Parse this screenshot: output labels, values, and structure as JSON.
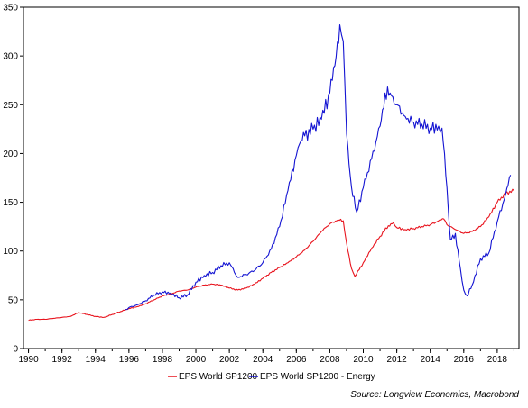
{
  "chart_data": {
    "type": "line",
    "title": "",
    "xlabel": "",
    "ylabel": "",
    "xlim": [
      1989.7,
      2019.3
    ],
    "ylim": [
      0,
      350
    ],
    "x_ticks": [
      1990,
      1992,
      1994,
      1996,
      1998,
      2000,
      2002,
      2004,
      2006,
      2008,
      2010,
      2012,
      2014,
      2016,
      2018
    ],
    "y_ticks": [
      0,
      50,
      100,
      150,
      200,
      250,
      300,
      350
    ],
    "grid": false,
    "legend_position": "bottom",
    "source": "Source: Longview Economics, Macrobond",
    "series": [
      {
        "name": "EPS World SP1200",
        "color": "#e8141e",
        "points": [
          [
            1990.0,
            29
          ],
          [
            1990.5,
            30
          ],
          [
            1991.0,
            30
          ],
          [
            1991.5,
            31
          ],
          [
            1992.0,
            32
          ],
          [
            1992.5,
            33
          ],
          [
            1993.0,
            37
          ],
          [
            1993.5,
            35
          ],
          [
            1994.0,
            33
          ],
          [
            1994.5,
            32
          ],
          [
            1995.0,
            35
          ],
          [
            1995.5,
            38
          ],
          [
            1996.0,
            41
          ],
          [
            1996.5,
            43
          ],
          [
            1997.0,
            46
          ],
          [
            1997.5,
            50
          ],
          [
            1998.0,
            54
          ],
          [
            1998.5,
            56
          ],
          [
            1999.0,
            59
          ],
          [
            1999.5,
            60
          ],
          [
            2000.0,
            63
          ],
          [
            2000.5,
            65
          ],
          [
            2001.0,
            66
          ],
          [
            2001.5,
            65
          ],
          [
            2002.0,
            62
          ],
          [
            2002.5,
            60
          ],
          [
            2003.0,
            62
          ],
          [
            2003.5,
            66
          ],
          [
            2004.0,
            72
          ],
          [
            2004.5,
            78
          ],
          [
            2005.0,
            83
          ],
          [
            2005.5,
            88
          ],
          [
            2006.0,
            94
          ],
          [
            2006.5,
            101
          ],
          [
            2007.0,
            110
          ],
          [
            2007.5,
            120
          ],
          [
            2008.0,
            128
          ],
          [
            2008.5,
            132
          ],
          [
            2008.8,
            131
          ],
          [
            2009.0,
            108
          ],
          [
            2009.3,
            82
          ],
          [
            2009.5,
            74
          ],
          [
            2010.0,
            88
          ],
          [
            2010.5,
            103
          ],
          [
            2011.0,
            115
          ],
          [
            2011.5,
            126
          ],
          [
            2011.8,
            129
          ],
          [
            2012.0,
            124
          ],
          [
            2012.5,
            122
          ],
          [
            2013.0,
            123
          ],
          [
            2013.5,
            125
          ],
          [
            2014.0,
            127
          ],
          [
            2014.5,
            131
          ],
          [
            2014.8,
            133
          ],
          [
            2015.0,
            127
          ],
          [
            2015.5,
            122
          ],
          [
            2016.0,
            118
          ],
          [
            2016.5,
            120
          ],
          [
            2017.0,
            125
          ],
          [
            2017.5,
            135
          ],
          [
            2018.0,
            150
          ],
          [
            2018.5,
            159
          ],
          [
            2019.0,
            162
          ]
        ]
      },
      {
        "name": "EPS World SP1200 - Energy",
        "color": "#1414d2",
        "points": [
          [
            1995.8,
            40
          ],
          [
            1996.0,
            42
          ],
          [
            1996.5,
            45
          ],
          [
            1997.0,
            49
          ],
          [
            1997.5,
            55
          ],
          [
            1998.0,
            58
          ],
          [
            1998.5,
            57
          ],
          [
            1999.0,
            52
          ],
          [
            1999.5,
            55
          ],
          [
            2000.0,
            68
          ],
          [
            2000.5,
            75
          ],
          [
            2001.0,
            78
          ],
          [
            2001.5,
            85
          ],
          [
            2002.0,
            88
          ],
          [
            2002.3,
            78
          ],
          [
            2002.5,
            73
          ],
          [
            2003.0,
            76
          ],
          [
            2003.5,
            80
          ],
          [
            2004.0,
            88
          ],
          [
            2004.5,
            102
          ],
          [
            2005.0,
            125
          ],
          [
            2005.5,
            162
          ],
          [
            2006.0,
            198
          ],
          [
            2006.2,
            210
          ],
          [
            2006.5,
            218
          ],
          [
            2007.0,
            225
          ],
          [
            2007.5,
            235
          ],
          [
            2008.0,
            262
          ],
          [
            2008.3,
            290
          ],
          [
            2008.6,
            332
          ],
          [
            2008.8,
            315
          ],
          [
            2009.0,
            220
          ],
          [
            2009.3,
            165
          ],
          [
            2009.6,
            140
          ],
          [
            2010.0,
            165
          ],
          [
            2010.5,
            195
          ],
          [
            2011.0,
            228
          ],
          [
            2011.3,
            262
          ],
          [
            2011.6,
            262
          ],
          [
            2012.0,
            250
          ],
          [
            2012.5,
            238
          ],
          [
            2013.0,
            232
          ],
          [
            2013.5,
            230
          ],
          [
            2014.0,
            226
          ],
          [
            2014.5,
            228
          ],
          [
            2014.7,
            226
          ],
          [
            2015.0,
            165
          ],
          [
            2015.2,
            112
          ],
          [
            2015.5,
            118
          ],
          [
            2015.8,
            82
          ],
          [
            2016.0,
            60
          ],
          [
            2016.2,
            54
          ],
          [
            2016.5,
            65
          ],
          [
            2017.0,
            92
          ],
          [
            2017.5,
            98
          ],
          [
            2018.0,
            130
          ],
          [
            2018.5,
            158
          ],
          [
            2018.8,
            178
          ]
        ]
      }
    ]
  }
}
